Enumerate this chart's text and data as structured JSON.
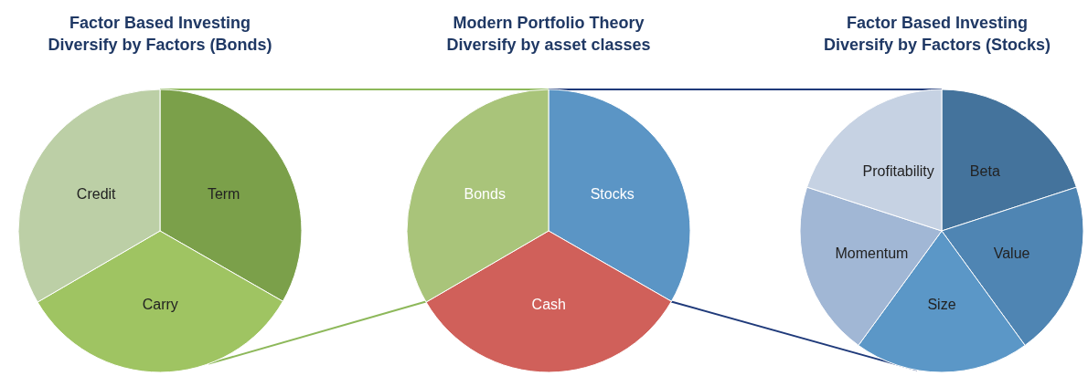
{
  "chart_data": [
    {
      "type": "pie",
      "title": "Factor Based Investing\nDiversify by Factors (Bonds)",
      "categories": [
        "Term",
        "Carry",
        "Credit"
      ],
      "values": [
        33.3,
        33.3,
        33.4
      ],
      "colors": [
        "#7ba04a",
        "#9fc462",
        "#bccfa6"
      ]
    },
    {
      "type": "pie",
      "title": "Modern Portfolio Theory\nDiversify by asset classes",
      "categories": [
        "Stocks",
        "Cash",
        "Bonds"
      ],
      "values": [
        33.3,
        33.3,
        33.4
      ],
      "colors": [
        "#5b95c5",
        "#d0605a",
        "#a9c47a"
      ]
    },
    {
      "type": "pie",
      "title": "Factor Based Investing\nDiversify by Factors (Stocks)",
      "categories": [
        "Beta",
        "Value",
        "Size",
        "Momentum",
        "Profitability"
      ],
      "values": [
        20,
        20,
        20,
        20,
        20
      ],
      "colors": [
        "#44739c",
        "#4f85b3",
        "#5b97c7",
        "#a1b7d5",
        "#c6d2e3"
      ]
    }
  ]
}
